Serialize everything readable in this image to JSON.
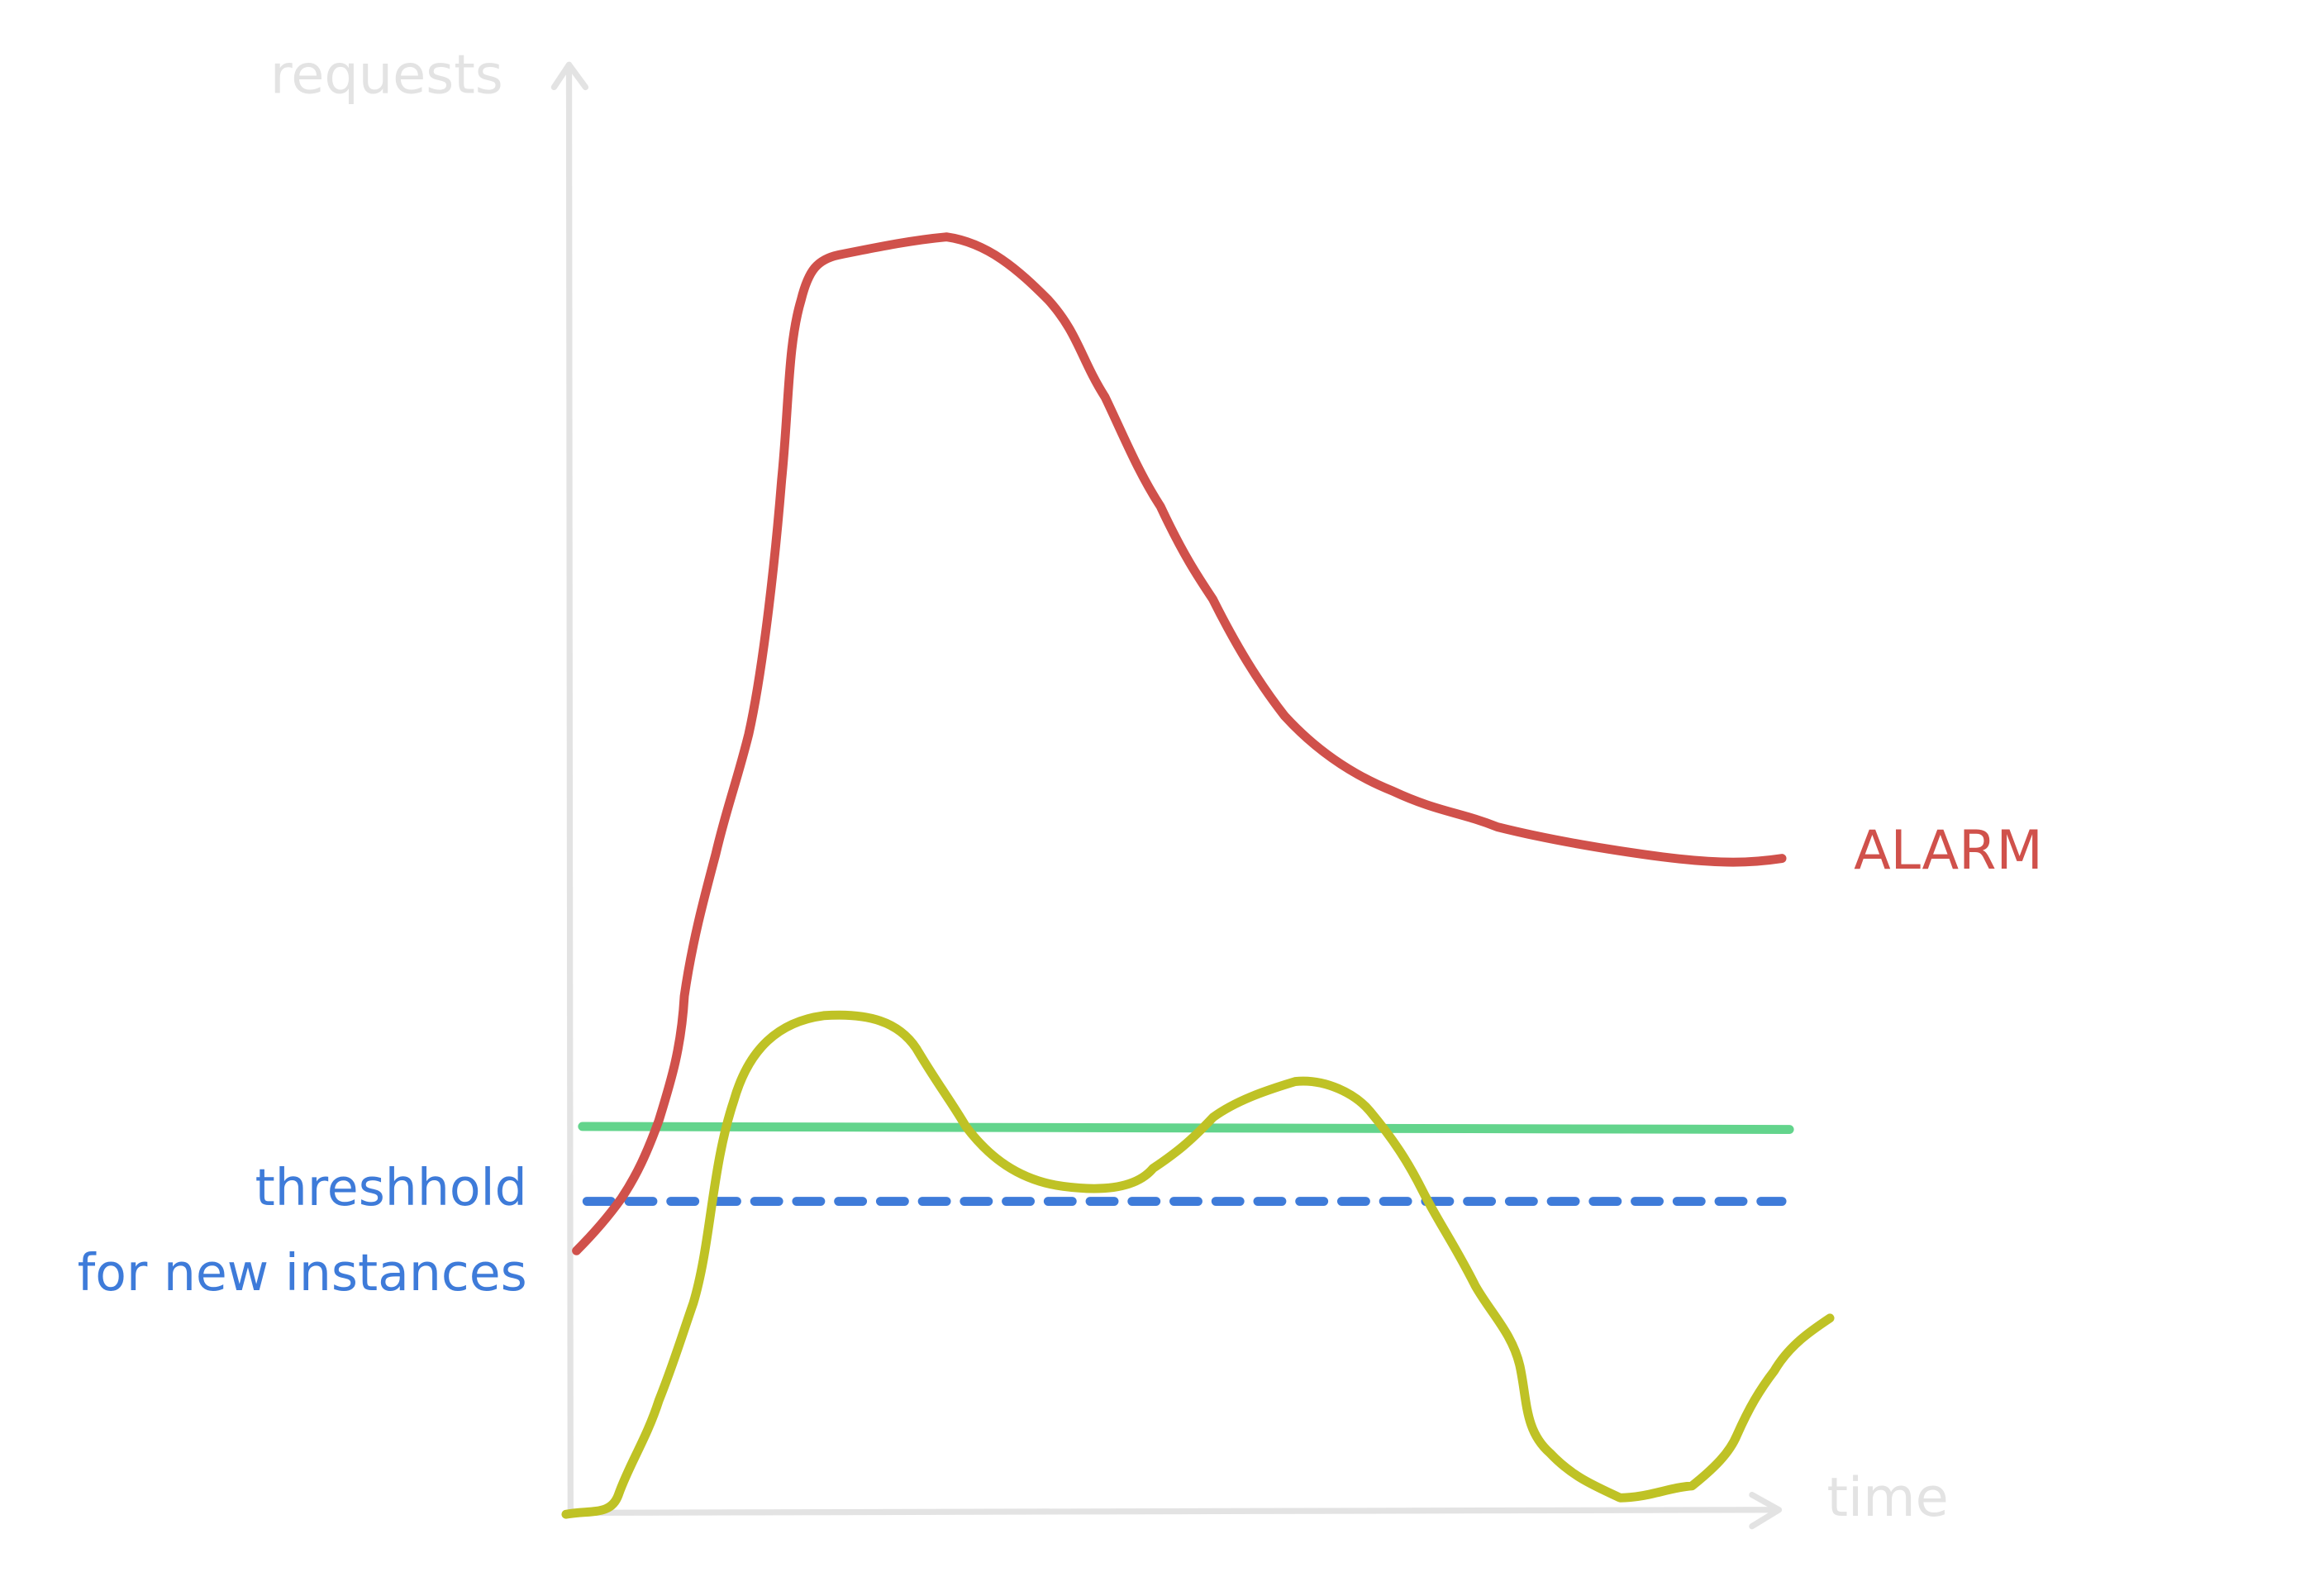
{
  "axes": {
    "y_label": "requests",
    "x_label": "time"
  },
  "labels": {
    "threshold_line1": "threshhold",
    "threshold_line2": "for new instances",
    "alarm": "ALARM"
  }
}
